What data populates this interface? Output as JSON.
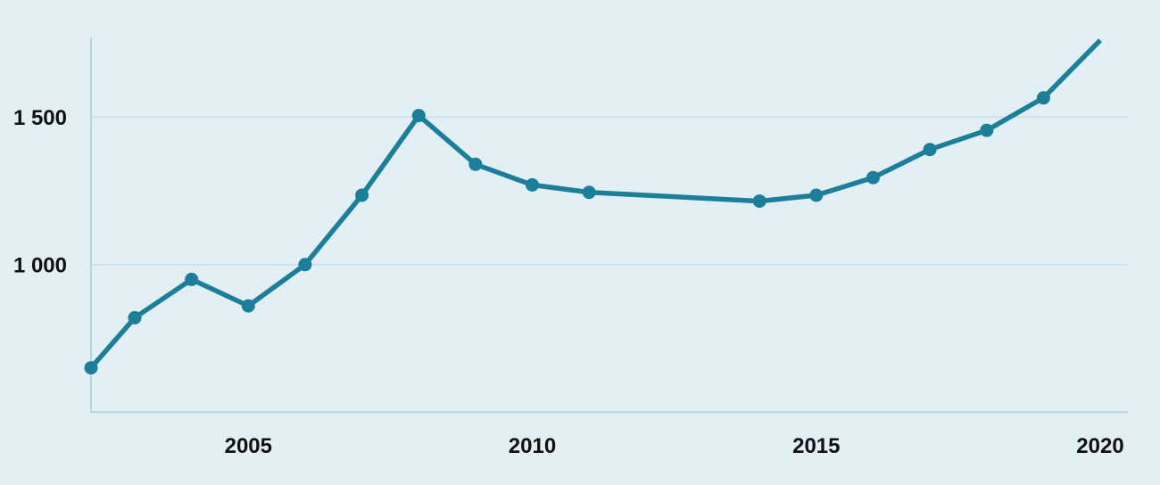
{
  "page": {
    "background": "#e2eff5"
  },
  "chart_data": {
    "type": "line",
    "title": "",
    "subtitle": "",
    "xlabel": "",
    "ylabel": "",
    "legend": "none",
    "grid": "horizontal",
    "x_axis": {
      "range_years": [
        2002,
        2020
      ],
      "ticks": [
        {
          "year": 2005,
          "label": "2005"
        },
        {
          "year": 2010,
          "label": "2010"
        },
        {
          "year": 2015,
          "label": "2015"
        },
        {
          "year": 2020,
          "label": "2020"
        }
      ]
    },
    "y_axis": {
      "min": 500,
      "max": 1770,
      "ticks": [
        {
          "value": 1000,
          "label": "1 000"
        },
        {
          "value": 1500,
          "label": "1 500"
        }
      ]
    },
    "series": [
      {
        "name": "value",
        "missing_years": [
          2012,
          2013
        ],
        "points": [
          {
            "year": 2002,
            "value": 650
          },
          {
            "year": 2003,
            "value": 820
          },
          {
            "year": 2004,
            "value": 950
          },
          {
            "year": 2005,
            "value": 860
          },
          {
            "year": 2006,
            "value": 1000
          },
          {
            "year": 2007,
            "value": 1235
          },
          {
            "year": 2008,
            "value": 1505
          },
          {
            "year": 2009,
            "value": 1340
          },
          {
            "year": 2010,
            "value": 1270
          },
          {
            "year": 2011,
            "value": 1245
          },
          {
            "year": 2014,
            "value": 1215
          },
          {
            "year": 2015,
            "value": 1235
          },
          {
            "year": 2016,
            "value": 1295
          },
          {
            "year": 2017,
            "value": 1390
          },
          {
            "year": 2018,
            "value": 1455
          },
          {
            "year": 2019,
            "value": 1565
          },
          {
            "year": 2020,
            "value": 1760,
            "marker": false
          }
        ]
      }
    ],
    "colors": {
      "line": "#1d7e99",
      "marker": "#1d7e99",
      "background": "#e2eff5",
      "gridline": "#c9e2ec",
      "axis": "#b2d6e3",
      "tick_text": "#111111"
    }
  }
}
